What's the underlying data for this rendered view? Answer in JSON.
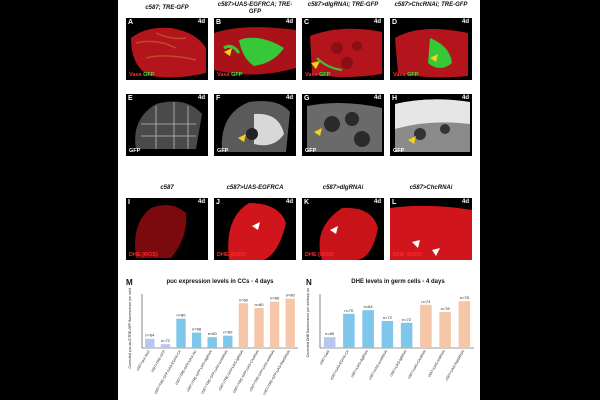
{
  "top_headers": [
    "c587; TRE-GFP",
    "c587>UAS-EGFRCA; TRE-GFP",
    "c587>dlgRNAi; TRE-GFP",
    "c587>ChcRNAi; TRE-GFP"
  ],
  "row3_headers": [
    "c587",
    "c587>UAS-EGFRCA",
    "c587>dlgRNAi",
    "c587>ChcRNAi"
  ],
  "rows": [
    {
      "letters": [
        "A",
        "B",
        "C",
        "D"
      ],
      "day": "4d",
      "stain1": "Vasa",
      "stain2": "GFP"
    },
    {
      "letters": [
        "E",
        "F",
        "G",
        "H"
      ],
      "day": "4d",
      "stain1": "GFP",
      "stain2": ""
    },
    {
      "letters": [
        "I",
        "J",
        "K",
        "L"
      ],
      "day": "4d",
      "stain1": "DHE (ROS)",
      "stain2": ""
    }
  ],
  "colors": {
    "red": "#c8141a",
    "green": "#3fd23f",
    "yellow": "#f2d21b",
    "gray_bar": "#9aaee0",
    "blue_bar": "#7ec6ea",
    "peach_bar": "#f5c6a8",
    "ctrl_bar": "#b8c6f0"
  },
  "chart_data": [
    {
      "type": "bar",
      "panel": "M",
      "title": "puc expression levels in CCs - 4 days",
      "ylabel": "Corrected puc-lacZ/TRE-GFP fluorescence per arbitrary units",
      "categories": [
        "c587>puc-lacZ",
        "c587>TRE-GFP",
        "c587>TRE-GFP;UAS-EGFR-CA",
        "c587>TRE-GFP;UAS-rho",
        "c587>TRE-GFP;UAS-dlgRNAi",
        "c587>TRE-GFP;UAS-scribRNAi",
        "c587>TRE-GFP;UAS-lglRNAi",
        "c587>TRE-GFP;UAS-ChcRNAi",
        "c587>TRE-GFP;UAS-shiRNAi",
        "c587>TRE-GFP;UAS-Rab5RNAi"
      ],
      "values": [
        12,
        5,
        38,
        20,
        14,
        16,
        58,
        52,
        60,
        64
      ],
      "n_labels": [
        "n=64",
        "n=72",
        "n=80",
        "n=68",
        "n=60",
        "n=60",
        "n=60",
        "n=60",
        "n=66",
        "n=80"
      ],
      "ylim": [
        0,
        70
      ]
    },
    {
      "type": "bar",
      "panel": "N",
      "title": "DHE levels in germ cells - 4 days",
      "ylabel": "Corrected DHE fluorescence per arbitrary units",
      "categories": [
        "c587-Gal4",
        "c587>UAS-EGFR-CA",
        "c587>UAS-dlgRNAi",
        "c587>UAS-scribRNAi",
        "c587>UAS-lglRNAi",
        "c587>UAS-ChcRNAi",
        "c587>UAS-shiRNAi",
        "c587>UAS-Rab5RNAi"
      ],
      "values": [
        12,
        38,
        42,
        30,
        28,
        48,
        40,
        52
      ],
      "n_labels": [
        "n=60",
        "n=70",
        "n=64",
        "n=72",
        "n=72",
        "n=74",
        "n=78",
        "n=78"
      ],
      "ylim": [
        0,
        60
      ]
    }
  ]
}
